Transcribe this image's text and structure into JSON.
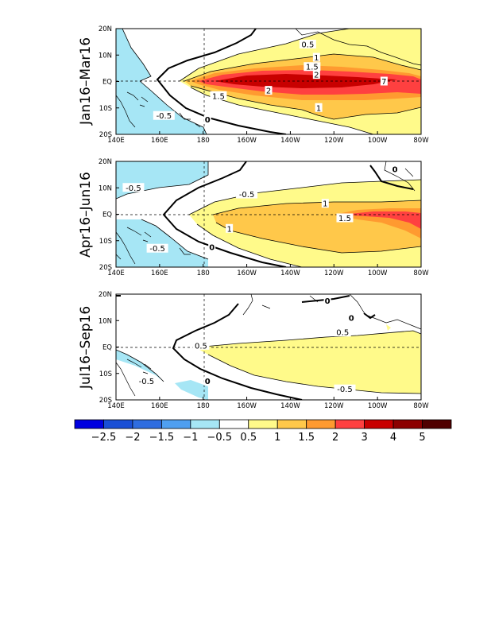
{
  "panels": [
    {
      "id": "jan-mar",
      "title": "Jan16–Mar16",
      "labels": [
        {
          "text": "0.5",
          "lon": -132,
          "lat": 14
        },
        {
          "text": "1",
          "lon": -128,
          "lat": 9
        },
        {
          "text": "1.5",
          "lon": -130,
          "lat": 5.5
        },
        {
          "text": "2",
          "lon": -128,
          "lat": 2.5
        },
        {
          "text": "1.5",
          "lon": -173,
          "lat": -5.5
        },
        {
          "text": "2",
          "lon": -150,
          "lat": -3.5
        },
        {
          "text": "1",
          "lon": -127,
          "lat": -10
        },
        {
          "text": "-0.5",
          "lon": 162,
          "lat": -13
        },
        {
          "text": "0",
          "lon": -178,
          "lat": -14.5
        },
        {
          "text": "7",
          "lon": -97,
          "lat": 0
        }
      ]
    },
    {
      "id": "apr-jun",
      "title": "Apr16–Jun16",
      "labels": [
        {
          "text": "-0.5",
          "lon": 148,
          "lat": 10
        },
        {
          "text": "-0.5",
          "lon": -160,
          "lat": 7.5
        },
        {
          "text": "1",
          "lon": -124,
          "lat": 4
        },
        {
          "text": "1.5",
          "lon": -115,
          "lat": -1.5
        },
        {
          "text": "1",
          "lon": -168,
          "lat": -5.5
        },
        {
          "text": "-0.5",
          "lon": 159,
          "lat": -13
        },
        {
          "text": "0",
          "lon": -176,
          "lat": -12.5
        },
        {
          "text": "0",
          "lon": -92,
          "lat": 17
        }
      ]
    },
    {
      "id": "jul-sep",
      "title": "Jul16–Sep16",
      "labels": [
        {
          "text": "0",
          "lon": -123,
          "lat": 17.5
        },
        {
          "text": "0",
          "lon": -112,
          "lat": 11
        },
        {
          "text": "0.5",
          "lon": -116,
          "lat": 5.5
        },
        {
          "text": "0.5",
          "lon": 179,
          "lat": 0.5
        },
        {
          "text": "-0.5",
          "lon": 154,
          "lat": -13
        },
        {
          "text": "0",
          "lon": -178,
          "lat": -13
        },
        {
          "text": "-0.5",
          "lon": -115,
          "lat": -16
        }
      ]
    }
  ],
  "axes": {
    "xticks": [
      "140E",
      "160E",
      "180",
      "160W",
      "140W",
      "120W",
      "100W",
      "80W"
    ],
    "yticks": [
      "20N",
      "10N",
      "EQ",
      "10S",
      "20S"
    ]
  },
  "colorbar": {
    "labels": [
      "−2.5",
      "−2",
      "−1.5",
      "−1",
      "−0.5",
      "0.5",
      "1",
      "1.5",
      "2",
      "3",
      "4",
      "5"
    ],
    "colors": [
      "#0000e0",
      "#1a4fd6",
      "#2f6de0",
      "#4f9ff0",
      "#a6e6f5",
      "#ffffff",
      "#fffa8a",
      "#ffc84a",
      "#ff9a30",
      "#ff4040",
      "#c80000",
      "#8c0000",
      "#500000"
    ]
  }
}
